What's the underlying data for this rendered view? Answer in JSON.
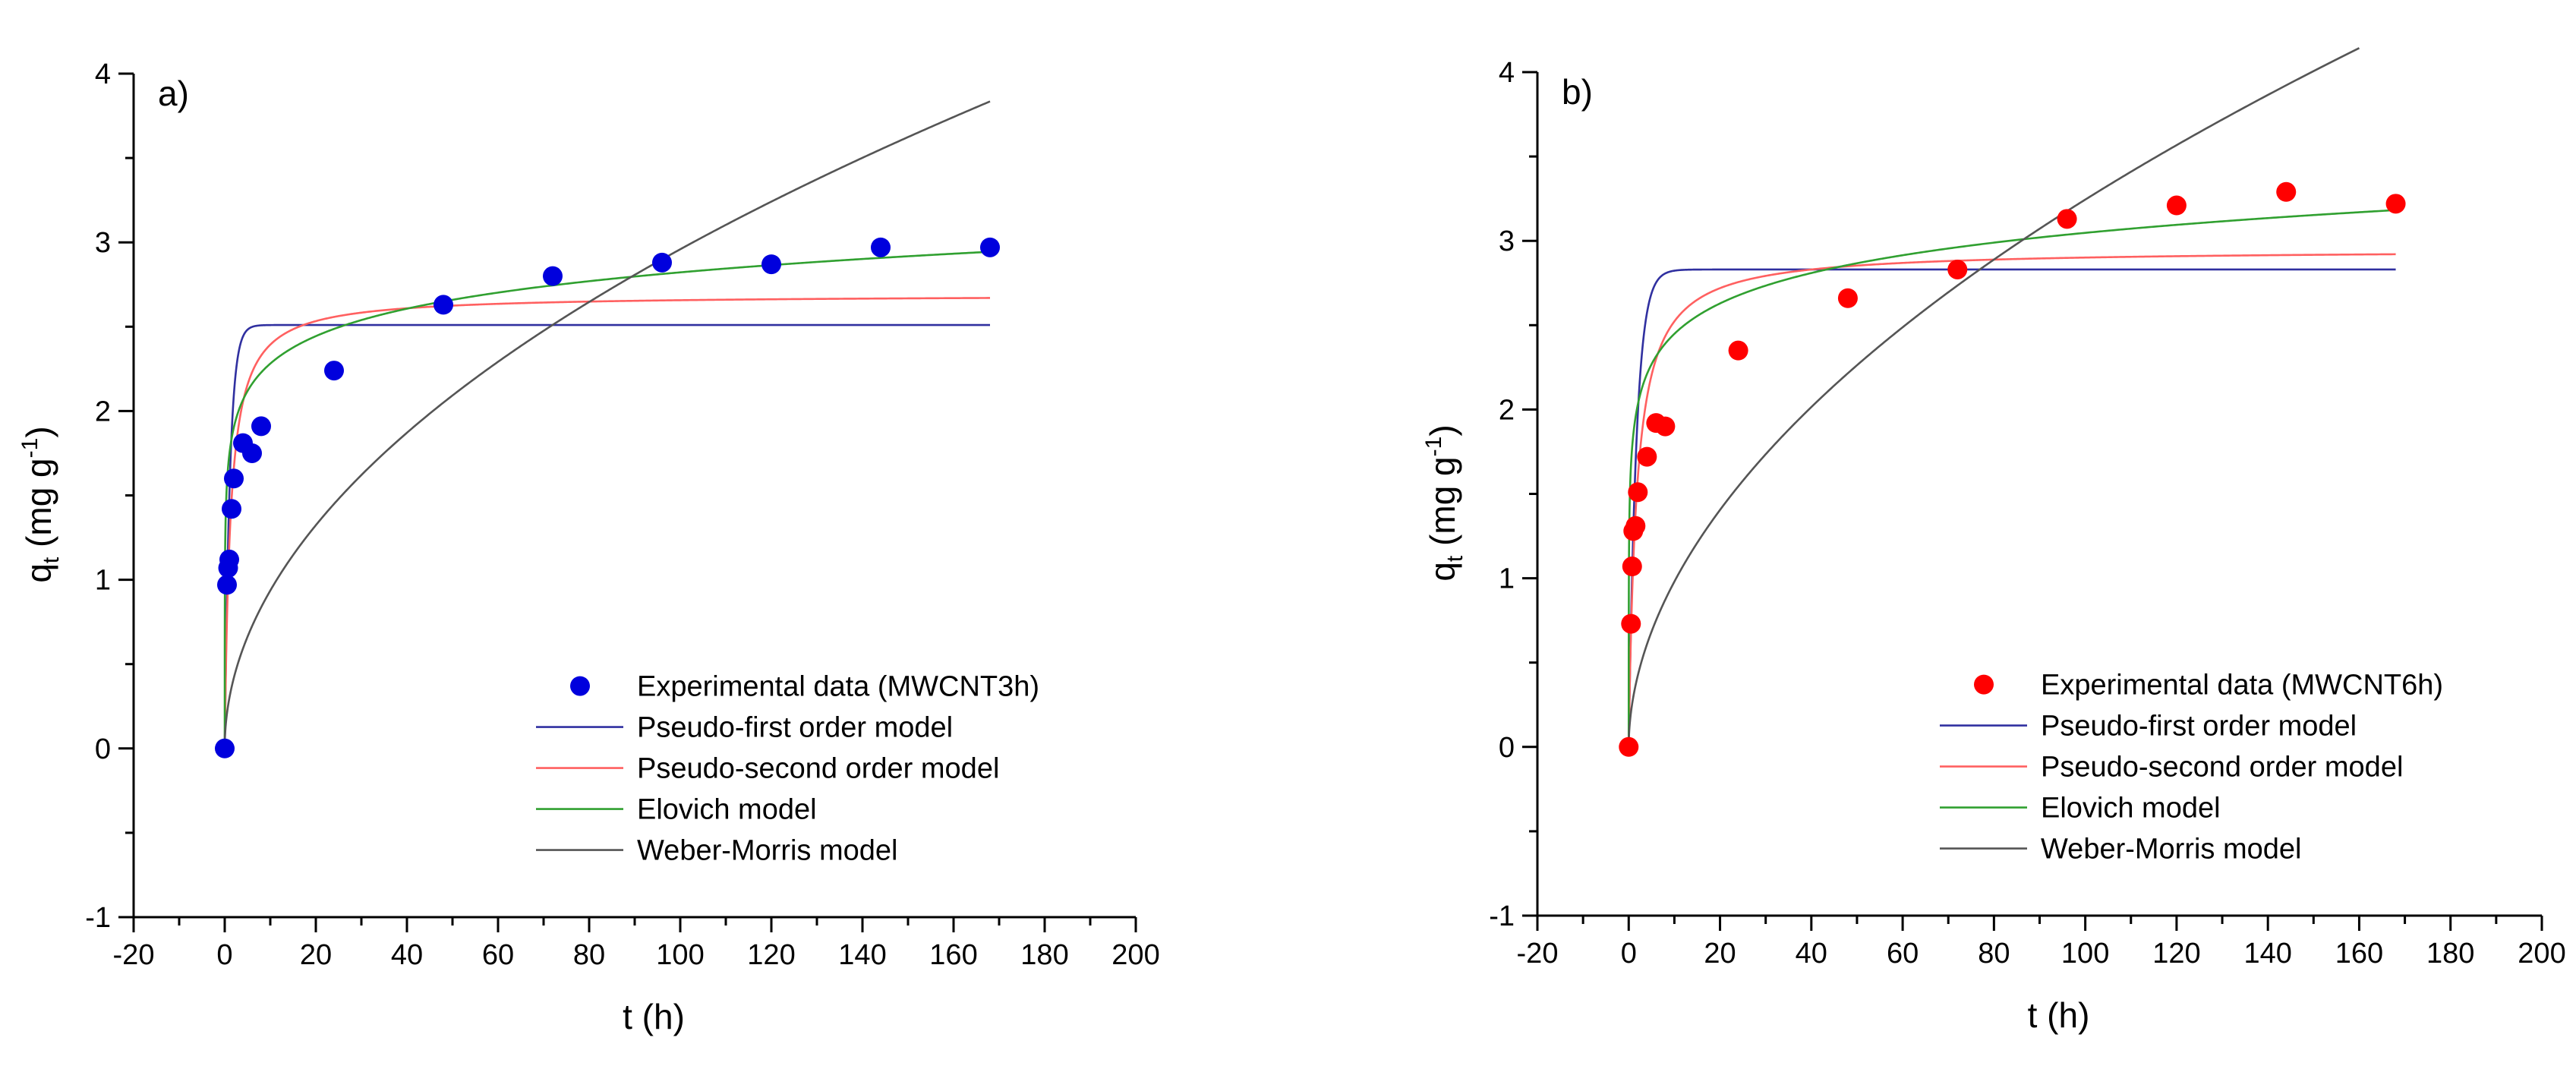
{
  "chart_data": [
    {
      "type": "scatter+line",
      "panel_label": "a)",
      "xlabel": "t (h)",
      "ylabel": {
        "main": "q",
        "sub": "t",
        "unit_pre": " (mg g",
        "unit_sup": "-1",
        "unit_post": ")"
      },
      "xlim": [
        -20,
        200
      ],
      "ylim": [
        -1,
        4
      ],
      "xticks": [
        "-20",
        "0",
        "20",
        "40",
        "60",
        "80",
        "100",
        "120",
        "140",
        "160",
        "180",
        "200"
      ],
      "yticks": [
        "-1",
        "0",
        "1",
        "2",
        "3",
        "4"
      ],
      "legend_position": "bottom-right",
      "experimental": {
        "name": "Experimental data (MWCNT3h)",
        "color": "#0000dd",
        "x": [
          0,
          0.5,
          0.75,
          1,
          1.5,
          2,
          4,
          6,
          8,
          24,
          48,
          72,
          96,
          120,
          144,
          168
        ],
        "y": [
          0,
          0.97,
          1.07,
          1.12,
          1.42,
          1.6,
          1.81,
          1.75,
          1.91,
          2.24,
          2.63,
          2.8,
          2.88,
          2.87,
          2.97,
          2.97
        ]
      },
      "models": [
        {
          "name": "Pseudo-first order model",
          "color": "#3030a0",
          "kind": "pfo",
          "qe": 2.51,
          "k": 0.9
        },
        {
          "name": "Pseudo-second order model",
          "color": "#ff6060",
          "kind": "pso",
          "qe": 2.69,
          "k": 0.3
        },
        {
          "name": "Elovich model",
          "color": "#30a030",
          "kind": "elovich",
          "a": 1.74,
          "b": 0.235
        },
        {
          "name": "Weber-Morris model",
          "color": "#555555",
          "kind": "wm",
          "k": 0.2959,
          "n": 0.5,
          "xmax": 168
        }
      ]
    },
    {
      "type": "scatter+line",
      "panel_label": "b)",
      "xlabel": "t (h)",
      "ylabel": {
        "main": "q",
        "sub": "t",
        "unit_pre": " (mg g",
        "unit_sup": "-1",
        "unit_post": ")"
      },
      "xlim": [
        -20,
        200
      ],
      "ylim": [
        -1,
        4
      ],
      "xticks": [
        "-20",
        "0",
        "20",
        "40",
        "60",
        "80",
        "100",
        "120",
        "140",
        "160",
        "180",
        "200"
      ],
      "yticks": [
        "-1",
        "0",
        "1",
        "2",
        "3",
        "4"
      ],
      "legend_position": "bottom-right",
      "experimental": {
        "name": "Experimental data (MWCNT6h)",
        "color": "#ff0000",
        "x": [
          0,
          0.5,
          0.75,
          1,
          1.5,
          2,
          4,
          6,
          8,
          24,
          48,
          72,
          96,
          120,
          144,
          168
        ],
        "y": [
          0,
          0.73,
          1.07,
          1.28,
          1.31,
          1.51,
          1.72,
          1.92,
          1.9,
          2.35,
          2.66,
          2.83,
          3.13,
          3.21,
          3.29,
          3.22
        ]
      },
      "models": [
        {
          "name": "Pseudo-first order model",
          "color": "#3030a0",
          "kind": "pfo",
          "qe": 2.83,
          "k": 0.6
        },
        {
          "name": "Pseudo-second order model",
          "color": "#ff6060",
          "kind": "pso",
          "qe": 2.95,
          "k": 0.2
        },
        {
          "name": "Elovich model",
          "color": "#30a030",
          "kind": "elovich",
          "a": 1.85,
          "b": 0.26
        },
        {
          "name": "Weber-Morris model",
          "color": "#555555",
          "kind": "wm",
          "k": 0.2959,
          "n": 0.52,
          "xmax": 160
        }
      ]
    }
  ]
}
